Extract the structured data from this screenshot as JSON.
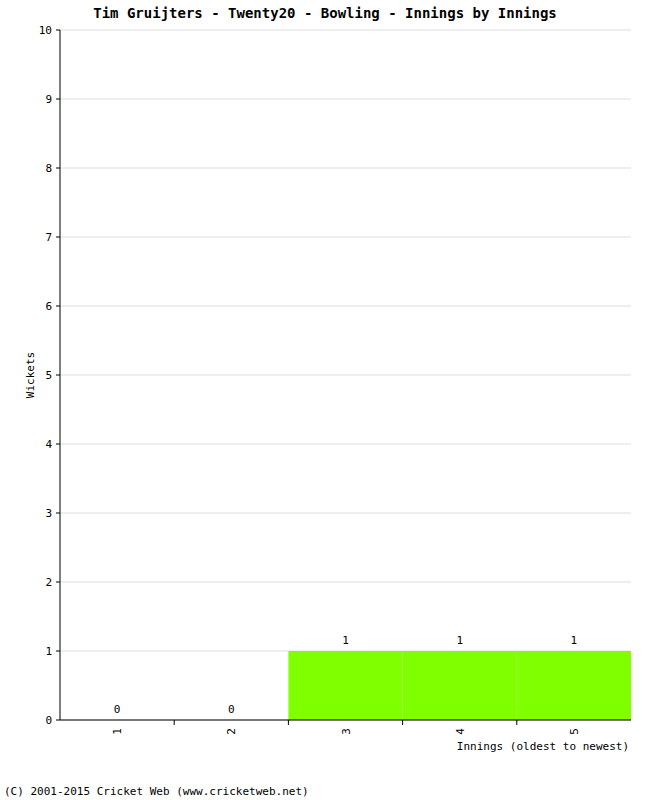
{
  "chart_data": {
    "type": "bar",
    "title": "Tim Gruijters - Twenty20 - Bowling - Innings by Innings",
    "x_label": "Innings (oldest to newest)",
    "y_label": "Wickets",
    "categories": [
      "1",
      "2",
      "3",
      "4",
      "5"
    ],
    "values": [
      0,
      0,
      1,
      1,
      1
    ],
    "color": "#7fff00",
    "ylim": [
      0,
      10
    ],
    "yticks": [
      0,
      1,
      2,
      3,
      4,
      5,
      6,
      7,
      8,
      9,
      10
    ],
    "grid": true,
    "data_labels": true,
    "annotations": [
      "(C) 2001-2015 Cricket Web (www.cricketweb.net)"
    ]
  }
}
